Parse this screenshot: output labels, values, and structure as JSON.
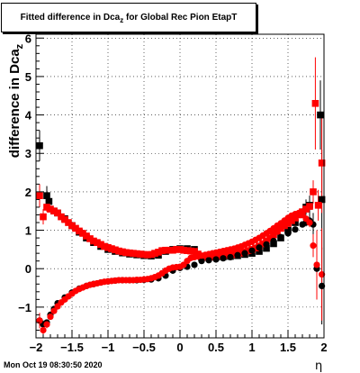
{
  "chart_data": {
    "type": "scatter",
    "title": "Fitted difference in Dca_z for Global Rec Pion EtapT",
    "title_main": "Fitted difference in Dca",
    "title_sub": "z",
    "title_tail": " for Global Rec Pion EtapT",
    "ylabel": "difference in Dca",
    "ylabel_sub": "z",
    "xlabel": "η",
    "xlim": [
      -2,
      2
    ],
    "ylim": [
      -1.8,
      6.1
    ],
    "x_ticks": [
      -2,
      -1.5,
      -1,
      -0.5,
      0,
      0.5,
      1,
      1.5,
      2
    ],
    "x_tick_labels": [
      "−2",
      "−1.5",
      "−1",
      "−0.5",
      "0",
      "0.5",
      "1",
      "1.5",
      "2"
    ],
    "y_ticks": [
      -1,
      0,
      1,
      2,
      3,
      4,
      5,
      6
    ],
    "y_tick_labels": [
      "−1",
      "0",
      "1",
      "2",
      "3",
      "4",
      "5",
      "6"
    ],
    "grid": true,
    "datestamp": "Mon Oct 19 08:30:50 2020",
    "series": [
      {
        "color": "#000000",
        "marker": "square",
        "x": [
          -1.95,
          -1.85,
          -1.82,
          -1.75,
          -1.7,
          -1.6,
          -1.5,
          -1.4,
          -1.3,
          -1.2,
          -1.1,
          -1.0,
          -0.9,
          -0.8,
          -0.7,
          -0.6,
          -0.5,
          -0.4,
          -0.3,
          -0.2,
          -0.1,
          0.0,
          0.1,
          0.2,
          0.3,
          0.4,
          0.5,
          0.6,
          0.7,
          0.8,
          0.9,
          1.0,
          1.1,
          1.2,
          1.3,
          1.4,
          1.5,
          1.6,
          1.7,
          1.75,
          1.8,
          1.95,
          1.97
        ],
        "y": [
          3.2,
          1.9,
          1.75,
          1.5,
          1.45,
          1.3,
          1.12,
          0.95,
          0.8,
          0.68,
          0.58,
          0.5,
          0.45,
          0.41,
          0.38,
          0.36,
          0.34,
          0.33,
          0.35,
          0.45,
          0.5,
          0.52,
          0.52,
          0.5,
          0.3,
          0.3,
          0.3,
          0.31,
          0.32,
          0.34,
          0.37,
          0.4,
          0.45,
          0.53,
          0.65,
          0.8,
          1.0,
          1.2,
          1.45,
          1.6,
          1.65,
          4.0,
          1.8
        ],
        "err": [
          0.4,
          0.25,
          0.15,
          0.08,
          0.05,
          0.04,
          0.03,
          0.02,
          0.02,
          0.02,
          0.02,
          0.02,
          0.02,
          0.02,
          0.02,
          0.02,
          0.02,
          0.02,
          0.02,
          0.02,
          0.02,
          0.02,
          0.02,
          0.02,
          0.02,
          0.02,
          0.02,
          0.02,
          0.02,
          0.02,
          0.02,
          0.02,
          0.02,
          0.02,
          0.02,
          0.04,
          0.05,
          0.08,
          0.12,
          0.2,
          0.25,
          0.9,
          1.3
        ]
      },
      {
        "color": "#ff0000",
        "marker": "square",
        "x": [
          -1.95,
          -1.9,
          -1.85,
          -1.8,
          -1.75,
          -1.7,
          -1.65,
          -1.6,
          -1.55,
          -1.5,
          -1.45,
          -1.4,
          -1.35,
          -1.3,
          -1.25,
          -1.2,
          -1.15,
          -1.1,
          -1.05,
          -1.0,
          -0.95,
          -0.9,
          -0.85,
          -0.8,
          -0.75,
          -0.7,
          -0.65,
          -0.6,
          -0.55,
          -0.5,
          -0.45,
          -0.4,
          -0.35,
          -0.3,
          -0.25,
          -0.2,
          -0.15,
          -0.1,
          -0.05,
          0.0,
          0.05,
          0.1,
          0.15,
          0.2,
          0.25,
          0.3,
          0.35,
          0.4,
          0.45,
          0.5,
          0.55,
          0.6,
          0.65,
          0.7,
          0.75,
          0.8,
          0.85,
          0.9,
          0.95,
          1.0,
          1.05,
          1.1,
          1.15,
          1.2,
          1.25,
          1.3,
          1.35,
          1.4,
          1.45,
          1.5,
          1.55,
          1.6,
          1.65,
          1.7,
          1.75,
          1.8,
          1.85,
          1.88,
          1.92,
          1.97
        ],
        "y": [
          1.9,
          1.35,
          1.6,
          1.55,
          1.5,
          1.45,
          1.35,
          1.28,
          1.2,
          1.12,
          1.05,
          0.98,
          0.92,
          0.85,
          0.78,
          0.72,
          0.68,
          0.63,
          0.58,
          0.55,
          0.52,
          0.49,
          0.46,
          0.44,
          0.42,
          0.41,
          0.4,
          0.39,
          0.38,
          0.37,
          0.36,
          0.37,
          0.4,
          0.43,
          0.47,
          0.48,
          0.48,
          0.48,
          0.5,
          0.5,
          0.48,
          0.47,
          0.46,
          0.45,
          0.38,
          0.3,
          0.3,
          0.3,
          0.31,
          0.32,
          0.33,
          0.34,
          0.35,
          0.36,
          0.37,
          0.39,
          0.41,
          0.44,
          0.47,
          0.5,
          0.54,
          0.59,
          0.65,
          0.72,
          0.8,
          0.88,
          0.97,
          1.05,
          1.12,
          1.18,
          1.25,
          1.32,
          1.4,
          1.48,
          1.55,
          1.62,
          2.0,
          4.3,
          1.65,
          2.75
        ],
        "err": [
          0.3,
          0.2,
          0.12,
          0.08,
          0.05,
          0.04,
          0.03,
          0.03,
          0.02,
          0.02,
          0.02,
          0.02,
          0.02,
          0.02,
          0.02,
          0.02,
          0.02,
          0.02,
          0.02,
          0.02,
          0.02,
          0.02,
          0.02,
          0.02,
          0.02,
          0.02,
          0.02,
          0.02,
          0.02,
          0.02,
          0.02,
          0.02,
          0.02,
          0.02,
          0.02,
          0.02,
          0.02,
          0.02,
          0.02,
          0.02,
          0.02,
          0.02,
          0.02,
          0.02,
          0.02,
          0.02,
          0.02,
          0.02,
          0.02,
          0.02,
          0.02,
          0.02,
          0.02,
          0.02,
          0.02,
          0.02,
          0.02,
          0.02,
          0.02,
          0.02,
          0.02,
          0.02,
          0.02,
          0.02,
          0.02,
          0.02,
          0.02,
          0.02,
          0.02,
          0.03,
          0.03,
          0.04,
          0.05,
          0.06,
          0.08,
          0.1,
          0.3,
          1.2,
          0.4,
          1.3
        ]
      },
      {
        "color": "#000000",
        "marker": "circle",
        "x": [
          -1.95,
          -1.9,
          -1.85,
          -1.8,
          -1.75,
          -1.7,
          -1.6,
          -1.5,
          -1.4,
          -1.3,
          -1.2,
          -1.1,
          -1.0,
          -0.9,
          -0.8,
          -0.7,
          -0.6,
          -0.5,
          -0.4,
          -0.3,
          -0.2,
          -0.1,
          0.0,
          0.1,
          0.2,
          0.3,
          0.4,
          0.5,
          0.6,
          0.7,
          0.8,
          0.9,
          1.0,
          1.1,
          1.2,
          1.3,
          1.4,
          1.5,
          1.6,
          1.7,
          1.75,
          1.8,
          1.85,
          1.9,
          1.97
        ],
        "y": [
          -1.35,
          -1.45,
          -1.4,
          -1.2,
          -1.05,
          -0.9,
          -0.75,
          -0.62,
          -0.52,
          -0.45,
          -0.4,
          -0.36,
          -0.33,
          -0.31,
          -0.3,
          -0.3,
          -0.3,
          -0.29,
          -0.28,
          -0.25,
          -0.18,
          -0.05,
          0.02,
          0.05,
          0.1,
          0.2,
          0.22,
          0.24,
          0.27,
          0.3,
          0.35,
          0.4,
          0.47,
          0.55,
          0.63,
          0.72,
          0.82,
          0.92,
          1.02,
          1.15,
          1.2,
          1.25,
          1.15,
          0.0,
          -0.45
        ],
        "err": [
          0.15,
          0.1,
          0.08,
          0.05,
          0.04,
          0.03,
          0.02,
          0.02,
          0.02,
          0.02,
          0.02,
          0.02,
          0.02,
          0.02,
          0.02,
          0.02,
          0.02,
          0.02,
          0.02,
          0.02,
          0.02,
          0.02,
          0.02,
          0.02,
          0.02,
          0.02,
          0.02,
          0.02,
          0.02,
          0.02,
          0.02,
          0.02,
          0.02,
          0.02,
          0.02,
          0.02,
          0.03,
          0.04,
          0.05,
          0.07,
          0.1,
          0.15,
          0.3,
          0.8,
          1.0
        ]
      },
      {
        "color": "#ff0000",
        "marker": "circle",
        "x": [
          -1.95,
          -1.9,
          -1.85,
          -1.8,
          -1.75,
          -1.7,
          -1.65,
          -1.6,
          -1.55,
          -1.5,
          -1.45,
          -1.4,
          -1.35,
          -1.3,
          -1.25,
          -1.2,
          -1.15,
          -1.1,
          -1.05,
          -1.0,
          -0.95,
          -0.9,
          -0.85,
          -0.8,
          -0.75,
          -0.7,
          -0.65,
          -0.6,
          -0.55,
          -0.5,
          -0.45,
          -0.4,
          -0.35,
          -0.3,
          -0.25,
          -0.2,
          -0.15,
          -0.1,
          -0.05,
          0.0,
          0.05,
          0.1,
          0.15,
          0.2,
          0.25,
          0.3,
          0.35,
          0.4,
          0.45,
          0.5,
          0.55,
          0.6,
          0.65,
          0.7,
          0.75,
          0.8,
          0.85,
          0.9,
          0.95,
          1.0,
          1.05,
          1.1,
          1.15,
          1.2,
          1.25,
          1.3,
          1.35,
          1.4,
          1.45,
          1.5,
          1.55,
          1.6,
          1.65,
          1.7,
          1.75,
          1.8,
          1.85,
          1.9,
          1.97
        ],
        "y": [
          -1.35,
          -1.6,
          -1.45,
          -1.25,
          -1.1,
          -0.98,
          -0.88,
          -0.8,
          -0.72,
          -0.65,
          -0.58,
          -0.53,
          -0.49,
          -0.45,
          -0.42,
          -0.4,
          -0.38,
          -0.36,
          -0.34,
          -0.33,
          -0.32,
          -0.31,
          -0.3,
          -0.3,
          -0.3,
          -0.3,
          -0.3,
          -0.29,
          -0.29,
          -0.28,
          -0.27,
          -0.25,
          -0.22,
          -0.18,
          -0.12,
          -0.05,
          0.0,
          0.03,
          0.04,
          0.05,
          0.1,
          0.2,
          0.28,
          0.3,
          0.32,
          0.34,
          0.36,
          0.38,
          0.4,
          0.42,
          0.44,
          0.46,
          0.48,
          0.5,
          0.52,
          0.55,
          0.58,
          0.62,
          0.66,
          0.7,
          0.75,
          0.8,
          0.86,
          0.92,
          0.98,
          1.05,
          1.12,
          1.18,
          1.25,
          1.32,
          1.38,
          1.42,
          1.45,
          1.4,
          1.3,
          1.2,
          0.6,
          0.1,
          -0.15
        ],
        "err": [
          0.2,
          0.12,
          0.1,
          0.06,
          0.04,
          0.03,
          0.03,
          0.02,
          0.02,
          0.02,
          0.02,
          0.02,
          0.02,
          0.02,
          0.02,
          0.02,
          0.02,
          0.02,
          0.02,
          0.02,
          0.02,
          0.02,
          0.02,
          0.02,
          0.02,
          0.02,
          0.02,
          0.02,
          0.02,
          0.02,
          0.02,
          0.02,
          0.02,
          0.02,
          0.02,
          0.02,
          0.02,
          0.02,
          0.02,
          0.02,
          0.02,
          0.02,
          0.02,
          0.02,
          0.02,
          0.02,
          0.02,
          0.02,
          0.02,
          0.02,
          0.02,
          0.02,
          0.02,
          0.02,
          0.02,
          0.02,
          0.02,
          0.02,
          0.02,
          0.02,
          0.02,
          0.02,
          0.02,
          0.02,
          0.02,
          0.02,
          0.02,
          0.02,
          0.02,
          0.02,
          0.03,
          0.03,
          0.04,
          0.05,
          0.08,
          0.12,
          0.3,
          0.9,
          1.2
        ]
      }
    ]
  }
}
